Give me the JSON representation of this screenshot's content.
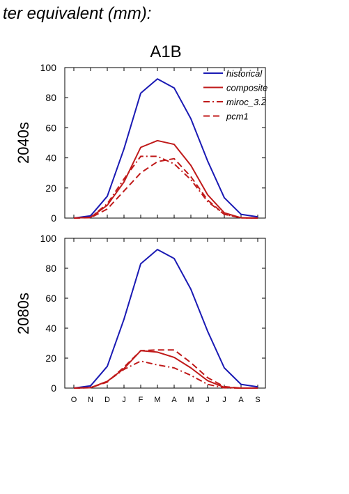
{
  "figure": {
    "header": "ter equivalent (mm):",
    "scenario": "A1B"
  },
  "chart_data": [
    {
      "type": "line",
      "row_label": "2040s",
      "x": [
        "O",
        "N",
        "D",
        "J",
        "F",
        "M",
        "A",
        "M",
        "J",
        "J",
        "A",
        "S"
      ],
      "ylim": [
        0,
        100
      ],
      "yticks": [
        0,
        20,
        40,
        60,
        80,
        100
      ],
      "legend": {
        "placement": "top-right"
      },
      "series": [
        {
          "name": "historical",
          "color": "#1a1ab4",
          "dash": "solid",
          "values": [
            0,
            1.5,
            14.5,
            46,
            83,
            92.5,
            86.5,
            66,
            38,
            13.5,
            2.5,
            0.8
          ]
        },
        {
          "name": "composite",
          "color": "#c01a1a",
          "dash": "solid",
          "values": [
            0,
            0.5,
            8.5,
            24,
            47,
            51.5,
            49,
            35,
            15.5,
            3.5,
            0.2,
            0
          ]
        },
        {
          "name": "miroc_3.2",
          "color": "#c01a1a",
          "dash": "dashdot",
          "values": [
            0,
            0.5,
            9.5,
            26,
            41,
            41,
            36,
            25.5,
            11,
            2.5,
            0.2,
            0
          ]
        },
        {
          "name": "pcm1",
          "color": "#c01a1a",
          "dash": "dash",
          "values": [
            0,
            0.3,
            6,
            18,
            30,
            37.5,
            39.5,
            27.5,
            12,
            2.5,
            0.2,
            0
          ]
        }
      ]
    },
    {
      "type": "line",
      "row_label": "2080s",
      "x": [
        "O",
        "N",
        "D",
        "J",
        "F",
        "M",
        "A",
        "M",
        "J",
        "J",
        "A",
        "S"
      ],
      "ylim": [
        0,
        100
      ],
      "yticks": [
        0,
        20,
        40,
        60,
        80,
        100
      ],
      "series": [
        {
          "name": "historical",
          "color": "#1a1ab4",
          "dash": "solid",
          "values": [
            0,
            1.5,
            14.5,
            46,
            83,
            92.5,
            86.5,
            66,
            38,
            13.5,
            2.5,
            0.8
          ]
        },
        {
          "name": "composite",
          "color": "#c01a1a",
          "dash": "solid",
          "values": [
            0,
            0.3,
            4.5,
            13,
            25,
            24,
            20.5,
            13.5,
            5,
            0.5,
            0,
            0
          ]
        },
        {
          "name": "miroc_3.2",
          "color": "#c01a1a",
          "dash": "dashdot",
          "values": [
            0,
            0.3,
            4.5,
            12.5,
            18,
            15.5,
            13.5,
            8.5,
            2.5,
            0.2,
            0,
            0
          ]
        },
        {
          "name": "pcm1",
          "color": "#c01a1a",
          "dash": "dash",
          "values": [
            0,
            0.3,
            4,
            14,
            25,
            25.5,
            25.5,
            17,
            7,
            1,
            0,
            0
          ]
        }
      ]
    }
  ]
}
